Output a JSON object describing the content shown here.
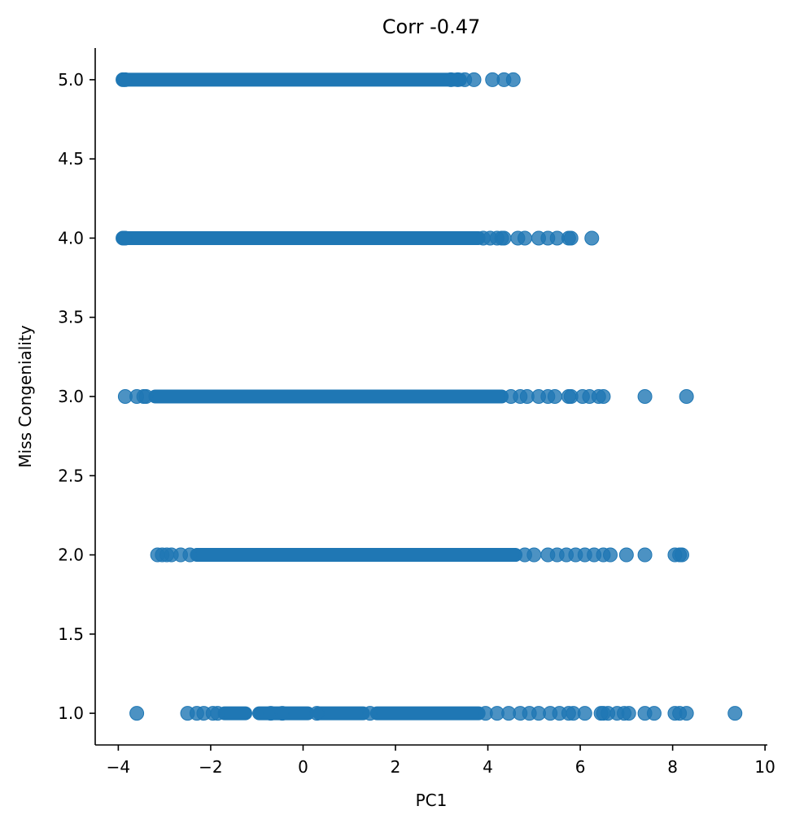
{
  "chart_data": {
    "type": "scatter",
    "title": "Corr -0.47",
    "xlabel": "PC1",
    "ylabel": "Miss Congeniality",
    "xlim": [
      -4.5,
      10.05
    ],
    "ylim": [
      0.8,
      5.2
    ],
    "xticks": [
      -4,
      -2,
      0,
      2,
      4,
      6,
      8,
      10
    ],
    "xtick_labels": [
      "−4",
      "−2",
      "0",
      "2",
      "4",
      "6",
      "8",
      "10"
    ],
    "yticks": [
      1.0,
      1.5,
      2.0,
      2.5,
      3.0,
      3.5,
      4.0,
      4.5,
      5.0
    ],
    "ytick_labels": [
      "1.0",
      "1.5",
      "2.0",
      "2.5",
      "3.0",
      "3.5",
      "4.0",
      "4.5",
      "5.0"
    ],
    "grid": false,
    "marker_color": "#1f77b4",
    "rows": [
      {
        "y": 5,
        "dense": [
          [
            -3.9,
            3.4
          ]
        ],
        "points": [
          -3.9,
          -3.85,
          3.2,
          3.35,
          3.5,
          3.7,
          4.1,
          4.35,
          4.55
        ]
      },
      {
        "y": 4,
        "dense": [
          [
            -3.9,
            3.8
          ]
        ],
        "points": [
          -3.9,
          -3.85,
          3.9,
          4.05,
          4.2,
          4.3,
          4.35,
          4.65,
          4.8,
          5.1,
          5.3,
          5.5,
          5.75,
          5.8,
          6.25
        ]
      },
      {
        "y": 3,
        "dense": [
          [
            -3.2,
            4.3
          ]
        ],
        "points": [
          -3.85,
          -3.6,
          -3.45,
          -3.4,
          4.5,
          4.7,
          4.85,
          5.1,
          5.3,
          5.45,
          5.75,
          5.8,
          6.05,
          6.2,
          6.4,
          6.5,
          7.4,
          8.3
        ]
      },
      {
        "y": 2,
        "dense": [
          [
            -2.3,
            4.6
          ]
        ],
        "points": [
          -3.15,
          -3.05,
          -2.95,
          -2.85,
          -2.65,
          -2.45,
          4.8,
          5.0,
          5.3,
          5.5,
          5.7,
          5.9,
          6.1,
          6.3,
          6.5,
          6.65,
          7.0,
          7.4,
          8.05,
          8.15,
          8.2
        ]
      },
      {
        "y": 1,
        "dense": [
          [
            -1.7,
            -1.25
          ],
          [
            -0.95,
            0.1
          ],
          [
            0.35,
            1.3
          ],
          [
            1.6,
            3.8
          ]
        ],
        "points": [
          -3.6,
          -2.5,
          -2.3,
          -2.15,
          -1.95,
          -1.85,
          -0.7,
          -0.45,
          0.3,
          1.45,
          3.95,
          4.2,
          4.45,
          4.7,
          4.9,
          5.1,
          5.35,
          5.55,
          5.75,
          5.85,
          6.1,
          6.45,
          6.5,
          6.6,
          6.8,
          6.95,
          7.05,
          7.4,
          7.6,
          8.05,
          8.15,
          8.3,
          9.35
        ]
      }
    ]
  }
}
